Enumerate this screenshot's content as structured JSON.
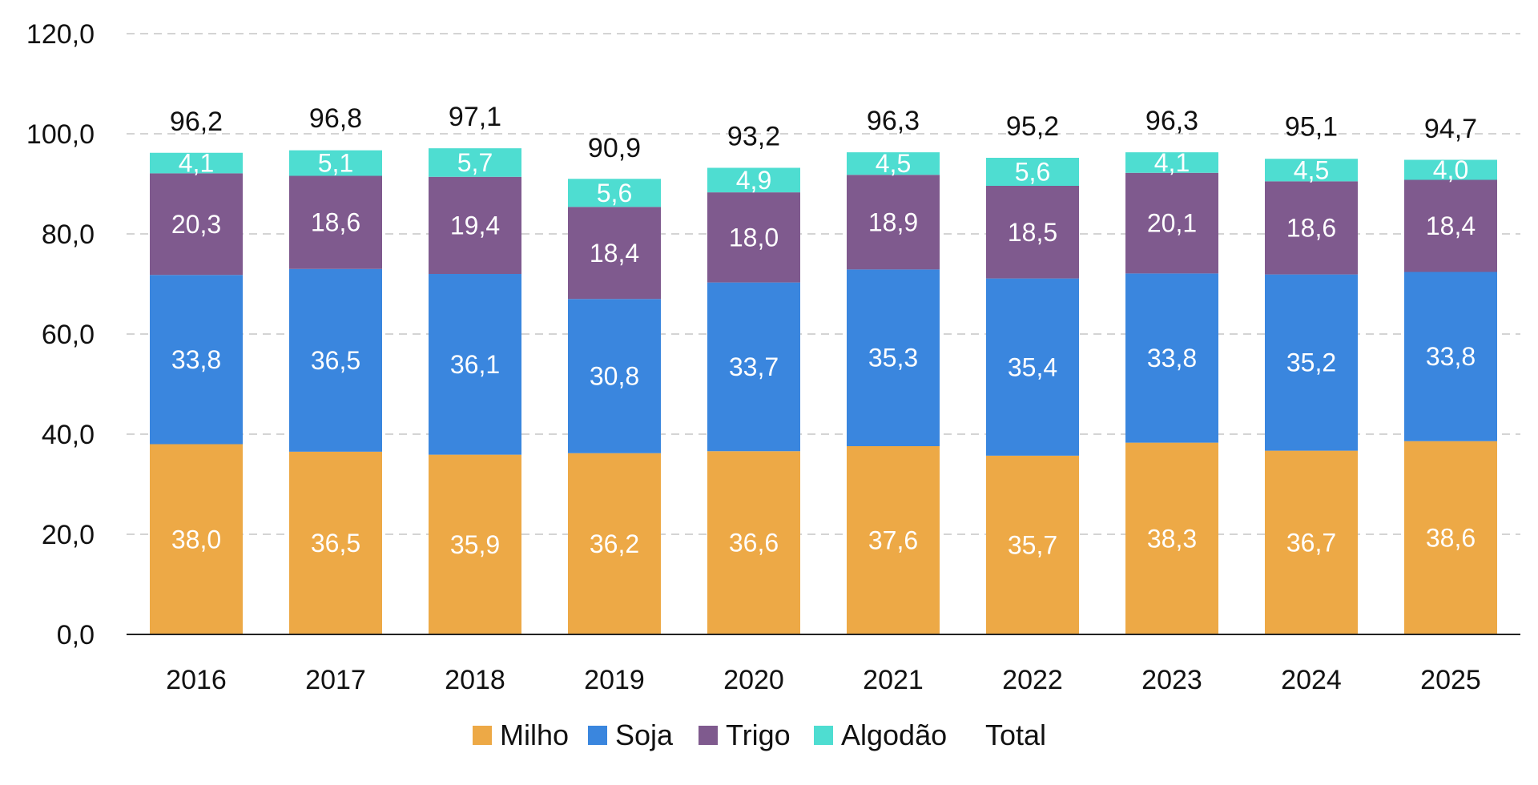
{
  "chart_data": {
    "type": "bar",
    "stacked": true,
    "categories": [
      "2016",
      "2017",
      "2018",
      "2019",
      "2020",
      "2021",
      "2022",
      "2023",
      "2024",
      "2025"
    ],
    "series": [
      {
        "name": "Milho",
        "color": "#EDA946",
        "values": [
          38.0,
          36.5,
          35.9,
          36.2,
          36.6,
          37.6,
          35.7,
          38.3,
          36.7,
          38.6
        ],
        "labels": [
          "38,0",
          "36,5",
          "35,9",
          "36,2",
          "36,6",
          "37,6",
          "35,7",
          "38,3",
          "36,7",
          "38,6"
        ]
      },
      {
        "name": "Soja",
        "color": "#3A86DE",
        "values": [
          33.8,
          36.5,
          36.1,
          30.8,
          33.7,
          35.3,
          35.4,
          33.8,
          35.2,
          33.8
        ],
        "labels": [
          "33,8",
          "36,5",
          "36,1",
          "30,8",
          "33,7",
          "35,3",
          "35,4",
          "33,8",
          "35,2",
          "33,8"
        ]
      },
      {
        "name": "Trigo",
        "color": "#7F5A8E",
        "values": [
          20.3,
          18.6,
          19.4,
          18.4,
          18.0,
          18.9,
          18.5,
          20.1,
          18.6,
          18.4
        ],
        "labels": [
          "20,3",
          "18,6",
          "19,4",
          "18,4",
          "18,0",
          "18,9",
          "18,5",
          "20,1",
          "18,6",
          "18,4"
        ]
      },
      {
        "name": "Algodão",
        "color": "#4EDDD1",
        "values": [
          4.1,
          5.1,
          5.7,
          5.6,
          4.9,
          4.5,
          5.6,
          4.1,
          4.5,
          4.0
        ],
        "labels": [
          "4,1",
          "5,1",
          "5,7",
          "5,6",
          "4,9",
          "4,5",
          "5,6",
          "4,1",
          "4,5",
          "4,0"
        ]
      }
    ],
    "totals": {
      "name": "Total",
      "values": [
        96.2,
        96.8,
        97.1,
        90.9,
        93.2,
        96.3,
        95.2,
        96.3,
        95.1,
        94.7
      ],
      "labels": [
        "96,2",
        "96,8",
        "97,1",
        "90,9",
        "93,2",
        "96,3",
        "95,2",
        "96,3",
        "95,1",
        "94,7"
      ]
    },
    "ylim": [
      0,
      120
    ],
    "yticks": [
      0,
      20,
      40,
      60,
      80,
      100,
      120
    ],
    "ytick_labels": [
      "0,0",
      "20,0",
      "40,0",
      "60,0",
      "80,0",
      "100,0",
      "120,0"
    ],
    "grid": true,
    "legend_position": "bottom",
    "title": "",
    "xlabel": "",
    "ylabel": ""
  }
}
